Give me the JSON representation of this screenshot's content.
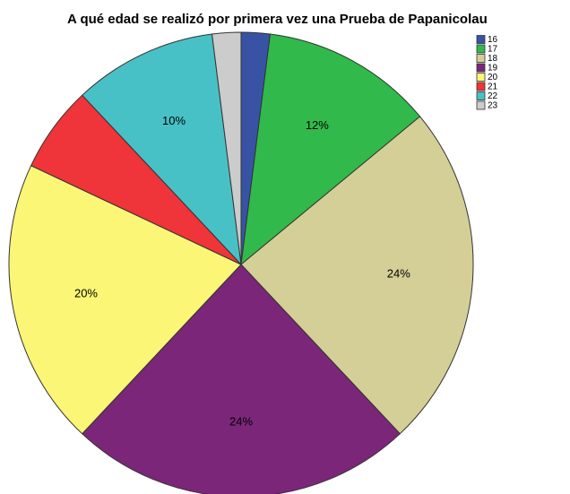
{
  "chart_data": {
    "type": "pie",
    "title": "A qué edad se realizó por primera vez una Prueba de Papanicolau",
    "categories": [
      "16",
      "17",
      "18",
      "19",
      "20",
      "21",
      "22",
      "23"
    ],
    "values": [
      2,
      12,
      24,
      24,
      20,
      6,
      10,
      2
    ],
    "value_labels": [
      null,
      "12%",
      "24%",
      "24%",
      "20%",
      null,
      "10%",
      null
    ],
    "colors": [
      "#3953a4",
      "#31b94b",
      "#d4cf96",
      "#7b2679",
      "#fbf675",
      "#ef343a",
      "#48c1c6",
      "#cccccc"
    ],
    "legend": "top-right"
  }
}
